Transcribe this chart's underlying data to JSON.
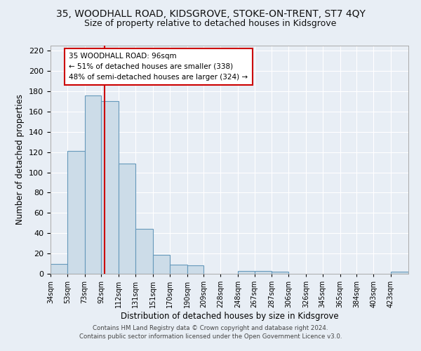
{
  "title": "35, WOODHALL ROAD, KIDSGROVE, STOKE-ON-TRENT, ST7 4QY",
  "subtitle": "Size of property relative to detached houses in Kidsgrove",
  "xlabel": "Distribution of detached houses by size in Kidsgrove",
  "ylabel": "Number of detached properties",
  "bin_labels": [
    "34sqm",
    "53sqm",
    "73sqm",
    "92sqm",
    "112sqm",
    "131sqm",
    "151sqm",
    "170sqm",
    "190sqm",
    "209sqm",
    "228sqm",
    "248sqm",
    "267sqm",
    "287sqm",
    "306sqm",
    "326sqm",
    "345sqm",
    "365sqm",
    "384sqm",
    "403sqm",
    "423sqm"
  ],
  "bin_edges": [
    34,
    53,
    73,
    92,
    112,
    131,
    151,
    170,
    190,
    209,
    228,
    248,
    267,
    287,
    306,
    326,
    345,
    365,
    384,
    403,
    423
  ],
  "bar_heights": [
    10,
    121,
    176,
    170,
    109,
    44,
    19,
    9,
    8,
    0,
    0,
    3,
    3,
    2,
    0,
    0,
    0,
    0,
    0,
    0,
    2
  ],
  "bar_color": "#ccdce8",
  "bar_edge_color": "#6699bb",
  "vline_x": 96,
  "vline_color": "#cc0000",
  "ylim": [
    0,
    225
  ],
  "yticks": [
    0,
    20,
    40,
    60,
    80,
    100,
    120,
    140,
    160,
    180,
    200,
    220
  ],
  "annotation_title": "35 WOODHALL ROAD: 96sqm",
  "annotation_line1": "← 51% of detached houses are smaller (338)",
  "annotation_line2": "48% of semi-detached houses are larger (324) →",
  "annotation_box_color": "#ffffff",
  "annotation_box_edge": "#cc0000",
  "footer1": "Contains HM Land Registry data © Crown copyright and database right 2024.",
  "footer2": "Contains public sector information licensed under the Open Government Licence v3.0.",
  "bg_color": "#e8eef5",
  "plot_bg_color": "#e8eef5",
  "title_fontsize": 10,
  "subtitle_fontsize": 9
}
